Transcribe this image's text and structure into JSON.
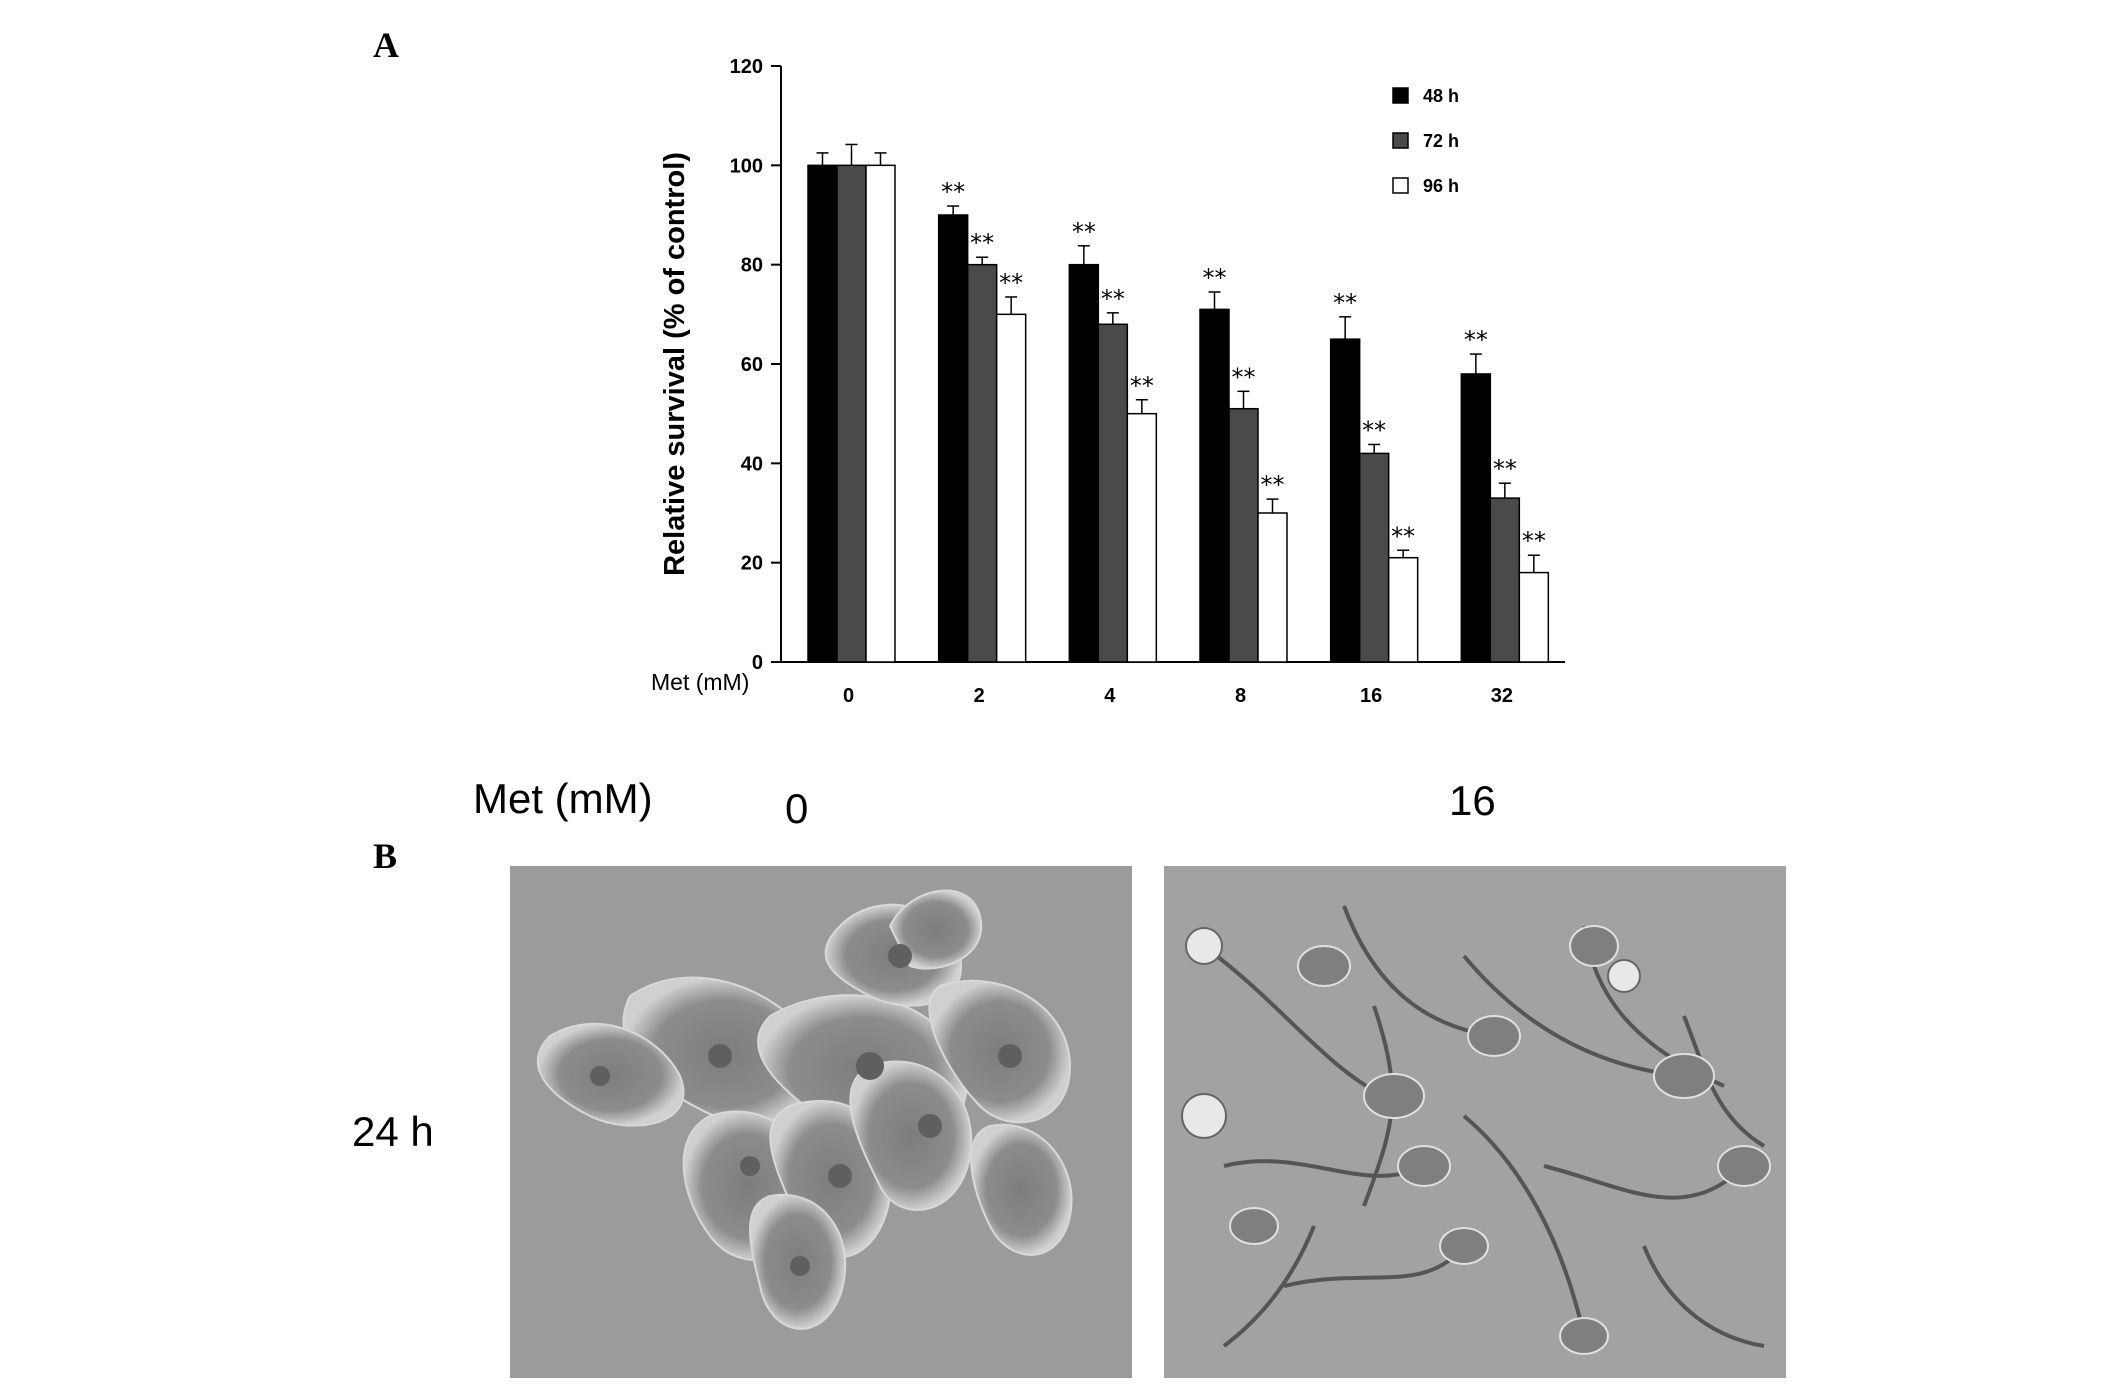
{
  "panel_a_label": "A",
  "panel_b_label": "B",
  "chart_data": {
    "type": "bar",
    "title": "",
    "xlabel": "Met (mM)",
    "ylabel": "Relative survival (% of control)",
    "categories": [
      "0",
      "2",
      "4",
      "8",
      "16",
      "32"
    ],
    "ylim": [
      0,
      120
    ],
    "yticks": [
      0,
      20,
      40,
      60,
      80,
      100,
      120
    ],
    "grid": false,
    "legend_position": "top-right",
    "series": [
      {
        "name": "48 h",
        "color": "#000000",
        "values": [
          100,
          90,
          80,
          71,
          65,
          58
        ],
        "errors": [
          2.5,
          1.8,
          3.8,
          3.5,
          4.5,
          4.0
        ],
        "significance": [
          "",
          "**",
          "**",
          "**",
          "**",
          "**"
        ]
      },
      {
        "name": "72 h",
        "color": "#4a4a4a",
        "values": [
          100,
          80,
          68,
          51,
          42,
          33
        ],
        "errors": [
          4.2,
          1.5,
          2.3,
          3.5,
          1.8,
          3.0
        ],
        "significance": [
          "",
          "**",
          "**",
          "**",
          "**",
          "**"
        ]
      },
      {
        "name": "96 h",
        "color": "#ffffff",
        "values": [
          100,
          70,
          50,
          30,
          21,
          18
        ],
        "errors": [
          2.5,
          3.5,
          2.8,
          2.8,
          1.5,
          3.5
        ],
        "significance": [
          "",
          "**",
          "**",
          "**",
          "**",
          "**"
        ]
      }
    ]
  },
  "panel_b": {
    "met_label": "Met (mM)",
    "col_labels": [
      "0",
      "16"
    ],
    "row_label": "24 h",
    "images": [
      {
        "description_icon": "microscopy-image-control"
      },
      {
        "description_icon": "microscopy-image-metformin"
      }
    ]
  }
}
